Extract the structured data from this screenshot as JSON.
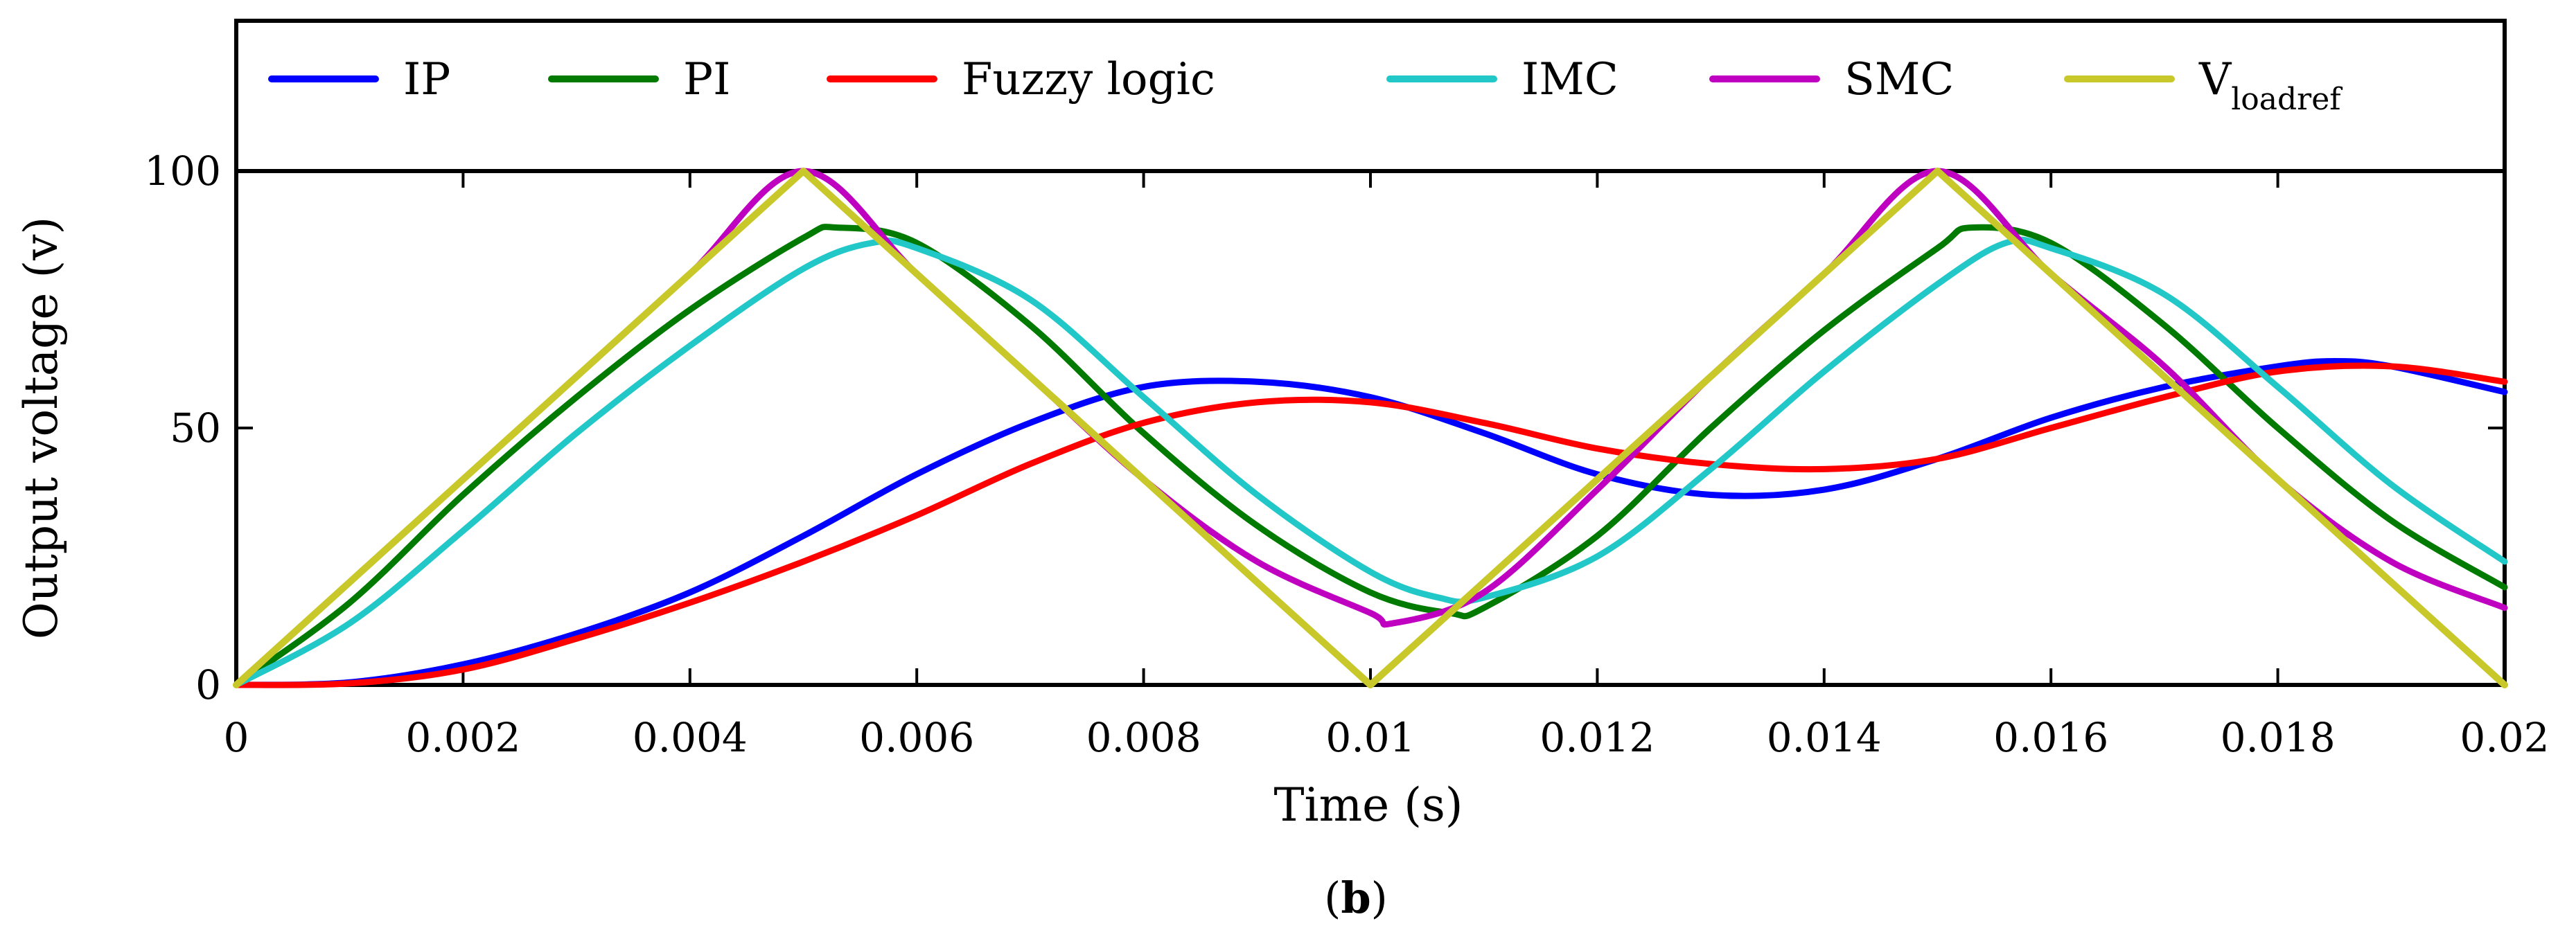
{
  "chart_data": {
    "type": "line",
    "title": "",
    "xlabel": "Time (s)",
    "ylabel": "Output voltage (v)",
    "xlim": [
      0,
      0.02
    ],
    "ylim": [
      0,
      100
    ],
    "x_ticks": [
      "0",
      "0.002",
      "0.004",
      "0.006",
      "0.008",
      "0.01",
      "0.012",
      "0.014",
      "0.016",
      "0.018",
      "0.02"
    ],
    "y_ticks": [
      "0",
      "50",
      "100"
    ],
    "legend_position": "top",
    "grid": false,
    "series": [
      {
        "name": "IP",
        "color": "#0000ff",
        "x": [
          0,
          0.001,
          0.002,
          0.003,
          0.004,
          0.005,
          0.006,
          0.007,
          0.008,
          0.009,
          0.01,
          0.011,
          0.012,
          0.013,
          0.014,
          0.015,
          0.016,
          0.017,
          0.018,
          0.0185,
          0.019,
          0.02
        ],
        "y": [
          0,
          0.5,
          4,
          10,
          18,
          29,
          41,
          51,
          58,
          59,
          56,
          49,
          41,
          37,
          38,
          44,
          52,
          58,
          62,
          63,
          62,
          57
        ]
      },
      {
        "name": "PI",
        "color": "#007a00",
        "x": [
          0,
          0.001,
          0.002,
          0.003,
          0.004,
          0.005,
          0.0053,
          0.006,
          0.007,
          0.008,
          0.009,
          0.01,
          0.0107,
          0.011,
          0.012,
          0.013,
          0.014,
          0.015,
          0.0153,
          0.016,
          0.017,
          0.018,
          0.019,
          0.02
        ],
        "y": [
          0,
          16,
          37,
          56,
          73,
          87,
          89,
          86,
          70,
          49,
          31,
          18,
          14,
          15,
          29,
          50,
          69,
          85,
          89,
          86,
          70,
          50,
          32,
          19
        ]
      },
      {
        "name": "Fuzzy logic",
        "color": "#ff0000",
        "x": [
          0,
          0.001,
          0.002,
          0.003,
          0.004,
          0.005,
          0.006,
          0.007,
          0.008,
          0.009,
          0.01,
          0.011,
          0.012,
          0.013,
          0.014,
          0.015,
          0.016,
          0.017,
          0.018,
          0.019,
          0.02
        ],
        "y": [
          0,
          0.3,
          3,
          9,
          16,
          24,
          33,
          43,
          51,
          55,
          55,
          51,
          46,
          43,
          42,
          44,
          50,
          56,
          61,
          62,
          59
        ]
      },
      {
        "name": "IMC",
        "color": "#22c7c7",
        "x": [
          0,
          0.001,
          0.002,
          0.003,
          0.004,
          0.005,
          0.0056,
          0.006,
          0.007,
          0.008,
          0.009,
          0.01,
          0.0106,
          0.011,
          0.012,
          0.013,
          0.014,
          0.015,
          0.0156,
          0.016,
          0.017,
          0.018,
          0.019,
          0.02
        ],
        "y": [
          0,
          12,
          30,
          49,
          66,
          81,
          86,
          85,
          75,
          56,
          37,
          22,
          17,
          17,
          25,
          42,
          61,
          78,
          86,
          85,
          76,
          58,
          39,
          24
        ]
      },
      {
        "name": "SMC",
        "color": "#c000c0",
        "x": [
          0,
          0.001,
          0.002,
          0.003,
          0.004,
          0.005,
          0.006,
          0.007,
          0.008,
          0.009,
          0.01,
          0.0102,
          0.011,
          0.012,
          0.013,
          0.014,
          0.015,
          0.016,
          0.017,
          0.018,
          0.019,
          0.02
        ],
        "y": [
          0,
          20,
          40,
          60,
          80,
          100,
          80,
          60,
          40,
          24,
          14,
          12,
          18,
          38,
          60,
          80,
          100,
          80,
          62,
          40,
          24,
          15
        ]
      },
      {
        "name": "V_loadref",
        "color": "#c8c82a",
        "x": [
          0,
          0.005,
          0.01,
          0.015,
          0.02
        ],
        "y": [
          0,
          100,
          0,
          100,
          0
        ]
      }
    ]
  },
  "legend": {
    "items": [
      {
        "label": "IP",
        "color": "#0000ff"
      },
      {
        "label": "PI",
        "color": "#007a00"
      },
      {
        "label": "Fuzzy logic",
        "color": "#ff0000"
      },
      {
        "label": "IMC",
        "color": "#22c7c7"
      },
      {
        "label": "SMC",
        "color": "#c000c0"
      },
      {
        "label": "V",
        "sub": "loadref",
        "color": "#c8c82a"
      }
    ]
  },
  "caption": {
    "open": "(",
    "letter": "b",
    "close": ")"
  }
}
